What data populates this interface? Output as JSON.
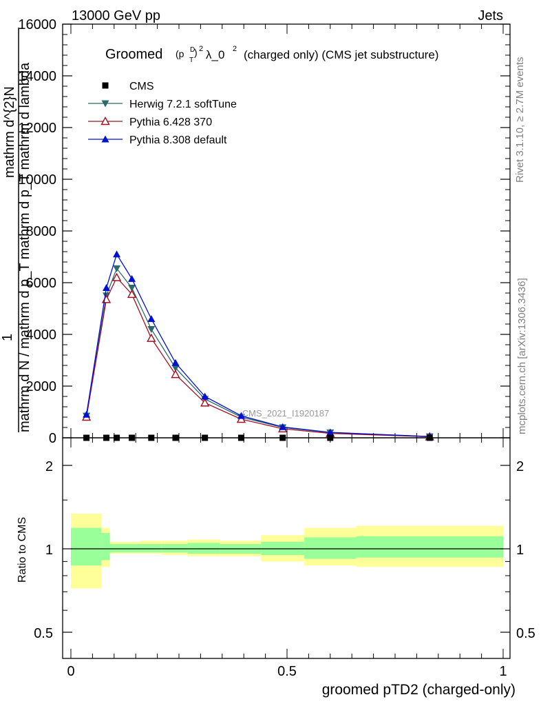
{
  "header": {
    "left": "13000 GeV pp",
    "right": "Jets"
  },
  "title": {
    "prefix": "Groomed",
    "formula": "(p",
    "sup_d": "D",
    "sub_t": "T",
    "sup2": "2",
    "rest": "λ_0",
    "sup3": "2",
    "suffix": "(charged only) (CMS jet substructure)"
  },
  "side_text": {
    "rivet": "Rivet 3.1.10, ≥ 2.7M events",
    "mcplots": "mcplots.cern.ch [arXiv:1306.3436]"
  },
  "watermark": "CMS_2021_I1920187",
  "ylabel_main": {
    "numerator": "mathrm d^{2}N",
    "frac_one": "1",
    "denominator": "mathrm d N / mathrm d p_T mathrm d p_T mathrm d lambda"
  },
  "ylabel_ratio": "Ratio to CMS",
  "xlabel": "groomed pTD2 (charged-only)",
  "legend": [
    {
      "label": "CMS",
      "color": "#000000",
      "marker": "square"
    },
    {
      "label": "Herwig 7.2.1 softTune",
      "color": "#2b6a6a",
      "marker": "triangle-down"
    },
    {
      "label": "Pythia 6.428 370",
      "color": "#a01020",
      "marker": "triangle-open"
    },
    {
      "label": "Pythia 8.308 default",
      "color": "#0010d0",
      "marker": "triangle-up"
    }
  ],
  "chart_data": {
    "type": "line",
    "x": [
      0.036,
      0.082,
      0.106,
      0.141,
      0.186,
      0.242,
      0.31,
      0.394,
      0.49,
      0.6,
      0.83
    ],
    "xlim": [
      -0.02,
      1.0
    ],
    "ylim": [
      0,
      16000
    ],
    "xticks": [
      "0",
      "0.5",
      "1"
    ],
    "yticks": [
      "0",
      "2000",
      "4000",
      "6000",
      "8000",
      "10000",
      "12000",
      "14000",
      "16000"
    ],
    "series": [
      {
        "name": "CMS",
        "values": [
          0,
          0,
          0,
          0,
          0,
          0,
          0,
          0,
          0,
          0,
          0
        ]
      },
      {
        "name": "Herwig 7.2.1 softTune",
        "values": [
          850,
          5500,
          6550,
          5800,
          4200,
          2700,
          1500,
          800,
          400,
          200,
          50
        ]
      },
      {
        "name": "Pythia 6.428 370",
        "values": [
          800,
          5350,
          6200,
          5550,
          3850,
          2450,
          1350,
          720,
          350,
          170,
          40
        ]
      },
      {
        "name": "Pythia 8.308 default",
        "values": [
          900,
          5800,
          7100,
          6150,
          4600,
          2900,
          1600,
          850,
          420,
          210,
          50
        ]
      }
    ],
    "ratio": {
      "ylim": [
        0.4,
        2.25
      ],
      "yticks": [
        "0.5",
        "1",
        "2"
      ],
      "bins": [
        0.0,
        0.07,
        0.09,
        0.125,
        0.16,
        0.21,
        0.27,
        0.345,
        0.44,
        0.54,
        0.66,
        1.0
      ],
      "inner": [
        [
          0.87,
          1.19
        ],
        [
          0.91,
          1.14
        ],
        [
          0.97,
          1.04
        ],
        [
          0.97,
          1.04
        ],
        [
          0.97,
          1.04
        ],
        [
          0.97,
          1.04
        ],
        [
          0.96,
          1.05
        ],
        [
          0.96,
          1.04
        ],
        [
          0.95,
          1.06
        ],
        [
          0.92,
          1.1
        ],
        [
          0.93,
          1.11
        ]
      ],
      "outer": [
        [
          0.72,
          1.34
        ],
        [
          0.86,
          1.19
        ],
        [
          0.96,
          1.06
        ],
        [
          0.96,
          1.06
        ],
        [
          0.96,
          1.07
        ],
        [
          0.95,
          1.07
        ],
        [
          0.94,
          1.08
        ],
        [
          0.94,
          1.07
        ],
        [
          0.9,
          1.12
        ],
        [
          0.87,
          1.19
        ],
        [
          0.86,
          1.21
        ]
      ]
    }
  },
  "colors": {
    "band_inner": "#99ff99",
    "band_outer": "#ffff99"
  }
}
